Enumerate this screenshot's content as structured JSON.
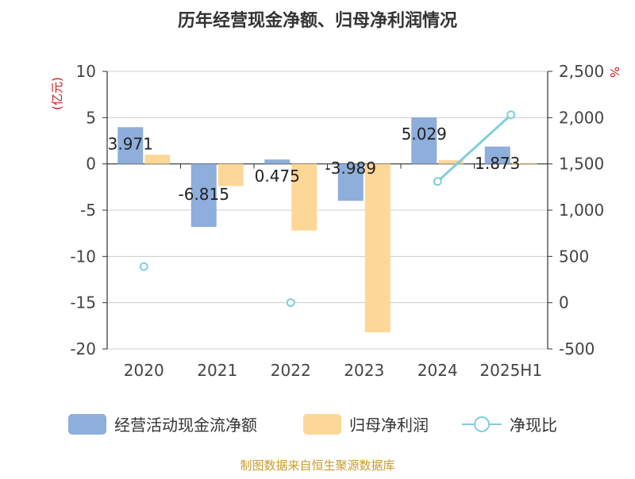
{
  "chart_data": {
    "type": "bar",
    "title": "历年经营现金净额、归母净利润情况",
    "categories": [
      "2020",
      "2021",
      "2022",
      "2023",
      "2024",
      "2025H1"
    ],
    "left_axis": {
      "unit": "(亿元)",
      "ylim": [
        -20,
        10
      ],
      "ticks": [
        "10",
        "5",
        "0",
        "-5",
        "-10",
        "-15",
        "-20"
      ],
      "tick_values": [
        10,
        5,
        0,
        -5,
        -10,
        -15,
        -20
      ]
    },
    "right_axis": {
      "unit": "%",
      "ylim": [
        -500,
        2500
      ],
      "ticks": [
        "2,500",
        "2,000",
        "1,500",
        "1,000",
        "500",
        "0",
        "-500"
      ],
      "tick_values": [
        2500,
        2000,
        1500,
        1000,
        500,
        0,
        -500
      ]
    },
    "series": [
      {
        "name": "经营活动现金流净额",
        "axis": "left",
        "type": "bar",
        "color": "#8eaedb",
        "values": [
          3.971,
          -6.815,
          0.475,
          -3.989,
          5.029,
          1.873
        ],
        "labels": [
          "3.971",
          "-6.815",
          "0.475",
          "-3.989",
          "5.029",
          "1.873"
        ]
      },
      {
        "name": "归母净利润",
        "axis": "left",
        "type": "bar",
        "color": "#fdd797",
        "values": [
          1.0,
          -2.4,
          -7.2,
          -18.2,
          0.4,
          0.1
        ]
      },
      {
        "name": "净现比",
        "axis": "right",
        "type": "line",
        "color": "#7fcfdb",
        "values": [
          390,
          null,
          0,
          null,
          1310,
          2030
        ]
      }
    ],
    "grid": true,
    "legend_position": "bottom"
  },
  "source_note": "制图数据来自恒生聚源数据库"
}
